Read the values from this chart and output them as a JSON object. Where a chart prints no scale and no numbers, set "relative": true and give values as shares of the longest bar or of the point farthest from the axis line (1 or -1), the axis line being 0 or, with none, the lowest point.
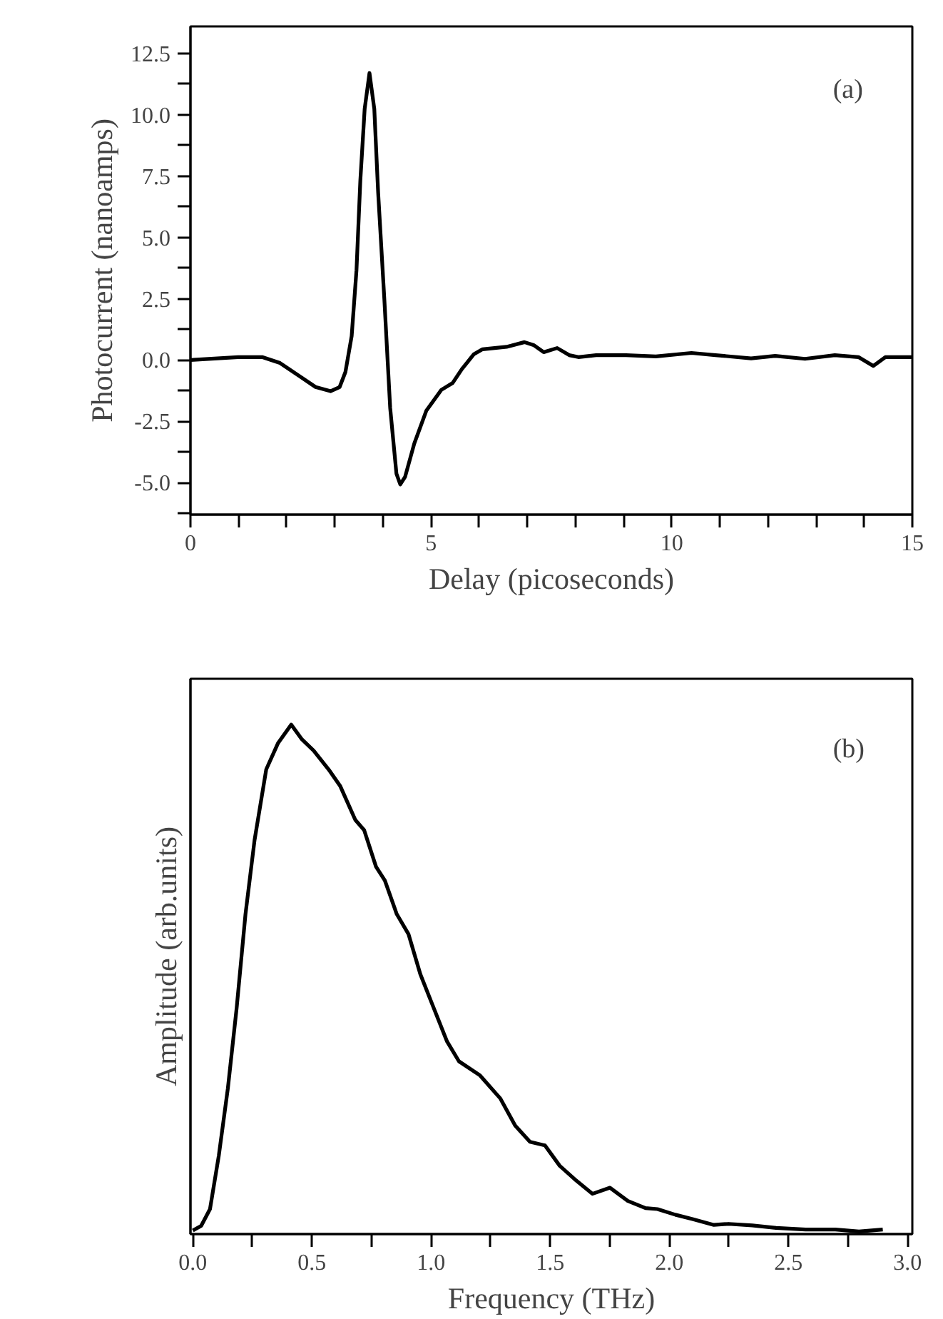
{
  "chart_data": [
    {
      "type": "line",
      "xlabel": "Delay (picoseconds)",
      "ylabel": "Photocurrent (nanoamps)",
      "annotations": [
        "(a)"
      ],
      "grid": false,
      "xlim": [
        0,
        15
      ],
      "ylim": [
        -6.3,
        13.6
      ],
      "xticks": [
        0,
        {
          "value": 1,
          "label": null
        },
        {
          "value": 2,
          "label": null
        },
        {
          "value": 3,
          "label": null
        },
        {
          "value": 4,
          "label": null
        },
        5,
        {
          "value": 6,
          "label": null
        },
        {
          "value": 7,
          "label": null
        },
        {
          "value": 8,
          "label": null
        },
        {
          "value": 9,
          "label": null
        },
        10,
        {
          "value": 11,
          "label": null
        },
        {
          "value": 12,
          "label": null
        },
        {
          "value": 13,
          "label": null
        },
        {
          "value": 14,
          "label": null
        },
        15
      ],
      "yticks": [
        {
          "value": -6.25,
          "label": null
        },
        {
          "value": -5,
          "label": "-5.0"
        },
        {
          "value": -3.75,
          "label": null
        },
        {
          "value": -2.5,
          "label": "-2.5"
        },
        {
          "value": -1.25,
          "label": null
        },
        {
          "value": 0,
          "label": "0.0"
        },
        {
          "value": 1.25,
          "label": null
        },
        {
          "value": 2.5,
          "label": "2.5"
        },
        {
          "value": 3.75,
          "label": null
        },
        {
          "value": 5,
          "label": "5.0"
        },
        {
          "value": 6.25,
          "label": null
        },
        {
          "value": 7.5,
          "label": "7.5"
        },
        {
          "value": 8.75,
          "label": null
        },
        {
          "value": 10,
          "label": "10.0"
        },
        {
          "value": 11.25,
          "label": null
        },
        {
          "value": 12.5,
          "label": "12.5"
        }
      ],
      "series": [
        {
          "color": "#000000",
          "x": [
            0,
            0.99,
            1.49,
            1.86,
            2.23,
            2.6,
            2.91,
            3.1,
            3.22,
            3.35,
            3.45,
            3.53,
            3.62,
            3.72,
            3.82,
            3.9,
            4.03,
            4.15,
            4.28,
            4.36,
            4.46,
            4.65,
            4.9,
            5.21,
            5.45,
            5.64,
            5.89,
            6.07,
            6.57,
            6.94,
            7.13,
            7.34,
            7.62,
            7.87,
            8.06,
            8.43,
            9.05,
            9.67,
            10.41,
            10.91,
            11.65,
            12.15,
            12.77,
            13.39,
            13.88,
            14.19,
            14.44,
            15
          ],
          "values": [
            0,
            0.12,
            0.12,
            -0.12,
            -0.61,
            -1.1,
            -1.27,
            -1.1,
            -0.49,
            0.98,
            3.66,
            7.32,
            10.24,
            11.7,
            10.24,
            6.83,
            2.44,
            -1.95,
            -4.63,
            -5.07,
            -4.76,
            -3.41,
            -2.07,
            -1.22,
            -0.93,
            -0.37,
            0.24,
            0.44,
            0.54,
            0.73,
            0.61,
            0.32,
            0.49,
            0.2,
            0.12,
            0.2,
            0.2,
            0.15,
            0.29,
            0.2,
            0.07,
            0.17,
            0.05,
            0.2,
            0.12,
            -0.24,
            0.12,
            0.12
          ]
        }
      ]
    },
    {
      "type": "line",
      "xlabel": "Frequency (THz)",
      "ylabel": "Amplitude (arb.units)",
      "annotations": [
        "(b)"
      ],
      "grid": false,
      "relative": true,
      "tick_labels": "x",
      "xlim": [
        -0.01,
        3.02
      ],
      "xticks": [
        {
          "value": 0,
          "label": "0.0"
        },
        {
          "value": 0.25,
          "label": null
        },
        {
          "value": 0.5,
          "label": "0.5"
        },
        {
          "value": 0.75,
          "label": null
        },
        {
          "value": 1,
          "label": "1.0"
        },
        {
          "value": 1.25,
          "label": null
        },
        {
          "value": 1.5,
          "label": "1.5"
        },
        {
          "value": 1.75,
          "label": null
        },
        {
          "value": 2,
          "label": "2.0"
        },
        {
          "value": 2.25,
          "label": null
        },
        {
          "value": 2.5,
          "label": "2.5"
        },
        {
          "value": 2.75,
          "label": null
        },
        {
          "value": 3,
          "label": "3.0"
        }
      ],
      "series": [
        {
          "color": "#000000",
          "x": [
            0,
            0.035,
            0.072,
            0.109,
            0.147,
            0.184,
            0.221,
            0.259,
            0.308,
            0.358,
            0.413,
            0.458,
            0.507,
            0.57,
            0.619,
            0.682,
            0.719,
            0.769,
            0.806,
            0.856,
            0.905,
            0.955,
            1.005,
            1.067,
            1.117,
            1.204,
            1.291,
            1.353,
            1.415,
            1.478,
            1.54,
            1.602,
            1.677,
            1.751,
            1.826,
            1.9,
            1.95,
            2.025,
            2.1,
            2.187,
            2.249,
            2.348,
            2.448,
            2.572,
            2.697,
            2.796,
            2.896
          ],
          "values": [
            0.007,
            0.016,
            0.049,
            0.154,
            0.286,
            0.444,
            0.628,
            0.773,
            0.912,
            0.964,
            1.0,
            0.971,
            0.949,
            0.912,
            0.879,
            0.813,
            0.793,
            0.721,
            0.694,
            0.628,
            0.589,
            0.51,
            0.451,
            0.378,
            0.339,
            0.312,
            0.266,
            0.213,
            0.181,
            0.174,
            0.134,
            0.108,
            0.079,
            0.091,
            0.065,
            0.051,
            0.049,
            0.038,
            0.029,
            0.018,
            0.02,
            0.017,
            0.012,
            0.009,
            0.009,
            0.005,
            0.009
          ]
        }
      ]
    }
  ]
}
